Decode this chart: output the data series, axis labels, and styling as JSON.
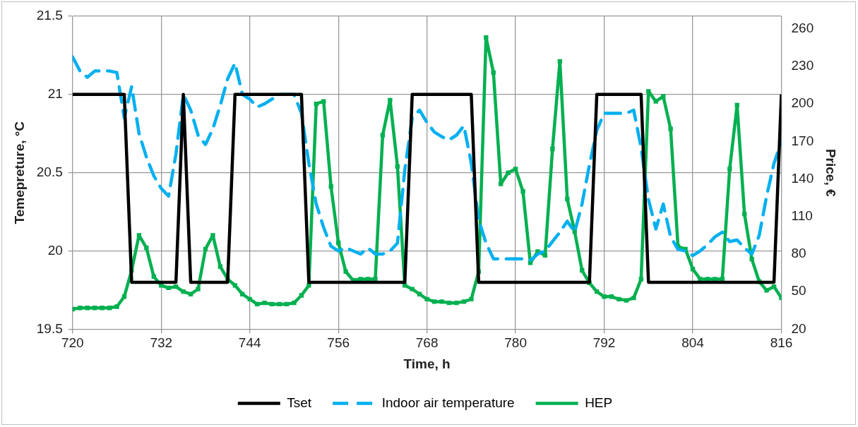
{
  "chart_data": {
    "type": "line",
    "xlabel": "Time, h",
    "ylabel": "Temepreture, °C",
    "y2label": "Price, €",
    "x": [
      720,
      721,
      722,
      723,
      724,
      725,
      726,
      727,
      728,
      729,
      730,
      731,
      732,
      733,
      734,
      735,
      736,
      737,
      738,
      739,
      740,
      741,
      742,
      743,
      744,
      745,
      746,
      747,
      748,
      749,
      750,
      751,
      752,
      753,
      754,
      755,
      756,
      757,
      758,
      759,
      760,
      761,
      762,
      763,
      764,
      765,
      766,
      767,
      768,
      769,
      770,
      771,
      772,
      773,
      774,
      775,
      776,
      777,
      778,
      779,
      780,
      781,
      782,
      783,
      784,
      785,
      786,
      787,
      788,
      789,
      790,
      791,
      792,
      793,
      794,
      795,
      796,
      797,
      798,
      799,
      800,
      801,
      802,
      803,
      804,
      805,
      806,
      807,
      808,
      809,
      810,
      811,
      812,
      813,
      814,
      815,
      816
    ],
    "xlim": [
      720,
      816
    ],
    "xticks": [
      720,
      732,
      744,
      756,
      768,
      780,
      792,
      804,
      816
    ],
    "ylim": [
      19.5,
      21.5
    ],
    "yticks": [
      19.5,
      20,
      20.5,
      21,
      21.5
    ],
    "y2lim": [
      20,
      270
    ],
    "y2ticks": [
      20,
      50,
      80,
      110,
      140,
      170,
      200,
      230,
      260
    ],
    "grid": true,
    "legend": "bottom",
    "series": [
      {
        "name": "Tset",
        "color": "#000000",
        "line_style": "solid",
        "marker": "none",
        "values": [
          21,
          21,
          21,
          21,
          21,
          21,
          21,
          21,
          19.8,
          19.8,
          19.8,
          19.8,
          19.8,
          19.8,
          19.8,
          21,
          19.8,
          19.8,
          19.8,
          19.8,
          19.8,
          19.8,
          21,
          21,
          21,
          21,
          21,
          21,
          21,
          21,
          21,
          21,
          19.8,
          19.8,
          19.8,
          19.8,
          19.8,
          19.8,
          19.8,
          19.8,
          19.8,
          19.8,
          19.8,
          19.8,
          19.8,
          19.8,
          21,
          21,
          21,
          21,
          21,
          21,
          21,
          21,
          21,
          19.8,
          19.8,
          19.8,
          19.8,
          19.8,
          19.8,
          19.8,
          19.8,
          19.8,
          19.8,
          19.8,
          19.8,
          19.8,
          19.8,
          19.8,
          19.8,
          21,
          21,
          21,
          21,
          21,
          21,
          21,
          19.8,
          19.8,
          19.8,
          19.8,
          19.8,
          19.8,
          19.8,
          19.8,
          19.8,
          19.8,
          19.8,
          19.8,
          19.8,
          19.8,
          19.8,
          19.8,
          19.8,
          19.8,
          21
        ]
      },
      {
        "name": "Indoor air temperature",
        "color": "#00b0f0",
        "line_style": "dashed",
        "marker": "none",
        "values": [
          21.24,
          21.15,
          21.11,
          21.15,
          21.15,
          21.15,
          21.14,
          20.85,
          21.05,
          20.75,
          20.6,
          20.48,
          20.4,
          20.35,
          20.62,
          21.0,
          20.9,
          20.74,
          20.68,
          20.78,
          20.93,
          21.1,
          21.2,
          21.0,
          20.97,
          20.92,
          20.94,
          20.97,
          21.0,
          21.0,
          21.0,
          20.88,
          20.56,
          20.3,
          20.15,
          20.03,
          20.0,
          20.02,
          20.0,
          19.98,
          20.02,
          19.98,
          19.98,
          20.0,
          20.05,
          20.52,
          20.85,
          20.9,
          20.82,
          20.76,
          20.73,
          20.71,
          20.74,
          20.8,
          20.56,
          20.2,
          20.05,
          19.95,
          19.95,
          19.95,
          19.95,
          19.95,
          19.94,
          19.98,
          20.0,
          20.06,
          20.12,
          20.19,
          20.12,
          20.3,
          20.55,
          20.77,
          20.88,
          20.88,
          20.88,
          20.88,
          20.9,
          20.66,
          20.33,
          20.14,
          20.3,
          20.09,
          20.01,
          20.0,
          19.97,
          20.0,
          20.04,
          20.09,
          20.12,
          20.06,
          20.07,
          20.02,
          19.98,
          20.1,
          20.35,
          20.56,
          20.7
        ]
      },
      {
        "name": "HEP",
        "color": "#00b050",
        "line_style": "solid",
        "marker": "square",
        "axis": "y2",
        "values": [
          36,
          37,
          37,
          37,
          37,
          37,
          38,
          46,
          67,
          95,
          85,
          62,
          55,
          53,
          54,
          50,
          48,
          52,
          84,
          95,
          70,
          60,
          55,
          48,
          44,
          40,
          41,
          40,
          40,
          40,
          41,
          47,
          55,
          200,
          202,
          134,
          89,
          66,
          59,
          60,
          60,
          60,
          175,
          203,
          150,
          55,
          52,
          48,
          44,
          42,
          42,
          41,
          41,
          42,
          44,
          66,
          253,
          225,
          136,
          145,
          148,
          130,
          73,
          82,
          79,
          164,
          234,
          124,
          98,
          67,
          57,
          50,
          46,
          46,
          44,
          43,
          45,
          60,
          210,
          202,
          206,
          180,
          86,
          84,
          68,
          60,
          60,
          60,
          60,
          148,
          199,
          112,
          76,
          58,
          51,
          54,
          45
        ]
      }
    ]
  }
}
